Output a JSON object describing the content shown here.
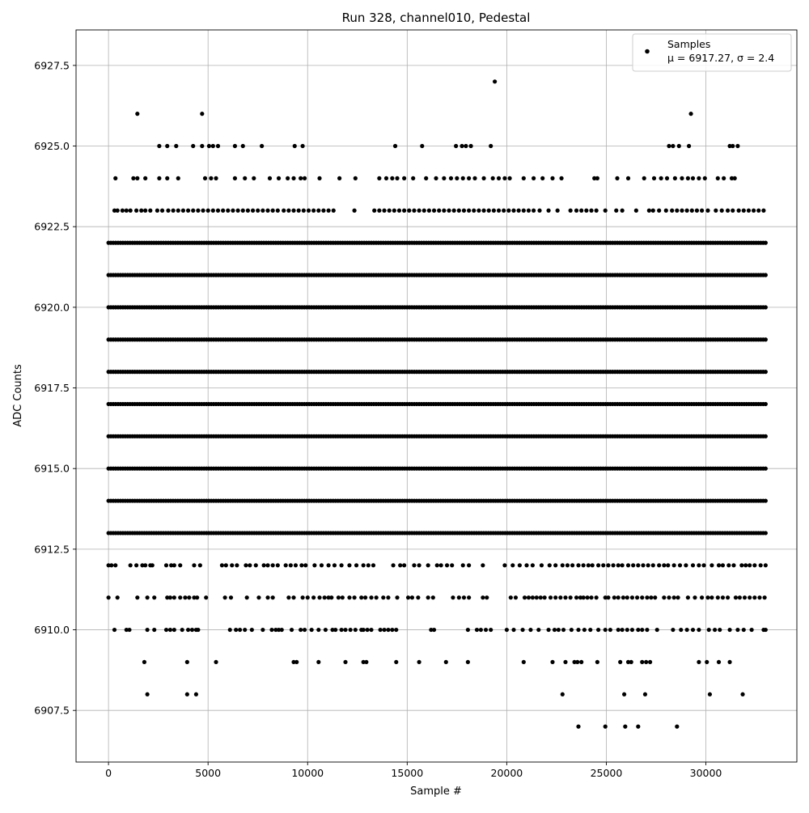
{
  "chart_data": {
    "type": "scatter",
    "title": "Run 328, channel010, Pedestal",
    "xlabel": "Sample #",
    "ylabel": "ADC Counts",
    "xlim": [
      -1630,
      34570
    ],
    "ylim": [
      6905.9,
      6928.6
    ],
    "x_ticks": [
      0,
      5000,
      10000,
      15000,
      20000,
      25000,
      30000
    ],
    "x_tick_labels": [
      "0",
      "5000",
      "10000",
      "15000",
      "20000",
      "25000",
      "30000"
    ],
    "y_ticks": [
      6907.5,
      6910.0,
      6912.5,
      6915.0,
      6917.5,
      6920.0,
      6922.5,
      6925.0,
      6927.5
    ],
    "y_tick_labels": [
      "6907.5",
      "6910.0",
      "6912.5",
      "6915.0",
      "6917.5",
      "6920.0",
      "6922.5",
      "6925.0",
      "6927.5"
    ],
    "grid": true,
    "legend_position": "top-right",
    "marker_color": "#000000",
    "series": [
      {
        "name": "Samples",
        "stats_label": "μ = 6917.27, σ = 2.4",
        "mean": 6917.27,
        "sigma": 2.4,
        "x_range": [
          0,
          33000
        ],
        "level_occupancy": [
          {
            "y": 6907,
            "x": [
              23600,
              24950,
              25950,
              26600,
              28550
            ]
          },
          {
            "y": 6908,
            "x": [
              1950,
              3950,
              4400,
              22800,
              25900,
              26950,
              30200,
              31850
            ]
          },
          {
            "y": 6909,
            "x": [
              1800,
              3950,
              5400,
              9300,
              9450,
              10550,
              11900,
              12800,
              12950,
              14450,
              15600,
              16950,
              18050,
              20850,
              22300,
              22950,
              23400,
              23550,
              23750,
              24550,
              25700,
              26100,
              26250,
              26800,
              27000,
              27200,
              29650,
              30050,
              30650,
              31200
            ]
          },
          {
            "y": 6910,
            "x": [
              300,
              900,
              1050,
              1950,
              2300,
              2900,
              3100,
              3300,
              3700,
              4000,
              4200,
              4400,
              4500,
              6100,
              6400,
              6600,
              6850,
              7200,
              7750,
              8200,
              8400,
              8550,
              8700,
              9200,
              9650,
              9850,
              10200,
              10550,
              10900,
              11250,
              11400,
              11700,
              11900,
              12150,
              12400,
              12700,
              12800,
              13000,
              13200,
              13650,
              13850,
              14050,
              14250,
              14450,
              16200,
              16350,
              18050,
              18500,
              18700,
              18950,
              19200,
              20000,
              20350,
              20800,
              21200,
              21600,
              22100,
              22400,
              22600,
              22850,
              23250,
              23600,
              23900,
              24200,
              24600,
              24950,
              25200,
              25600,
              25800,
              26050,
              26300,
              26600,
              26800,
              27050,
              27550,
              28350,
              28750,
              29050,
              29350,
              29650,
              30150,
              30450,
              30700,
              31200,
              31600,
              31900,
              32300,
              32900,
              33000
            ]
          },
          {
            "y": 6911,
            "x": [
              0,
              450,
              1450,
              1950,
              2300,
              2950,
              3100,
              3300,
              3600,
              3850,
              4050,
              4300,
              4450,
              4900,
              5850,
              6150,
              6950,
              7550,
              8000,
              8250,
              9050,
              9300,
              9750,
              10000,
              10300,
              10600,
              10850,
              11050,
              11200,
              11550,
              11750,
              12100,
              12350,
              12700,
              12900,
              13200,
              13450,
              13800,
              14050,
              14500,
              15050,
              15250,
              15550,
              16050,
              16300,
              17300,
              17600,
              17850,
              18100,
              18800,
              19000,
              20200,
              20450,
              20900,
              21100,
              21300,
              21500,
              21700,
              21900,
              22200,
              22450,
              22700,
              22950,
              23200,
              23500,
              23700,
              23850,
              24050,
              24250,
              24500,
              24950,
              25100,
              25400,
              25600,
              25850,
              26050,
              26300,
              26550,
              26800,
              27050,
              27250,
              27450,
              27900,
              28150,
              28400,
              28600,
              29100,
              29450,
              29800,
              30100,
              30300,
              30600,
              30850,
              31100,
              31500,
              31700,
              31950,
              32200,
              32450,
              32700,
              32950
            ]
          },
          {
            "y": 6912,
            "x": [
              0,
              150,
              350,
              1100,
              1400,
              1700,
              1850,
              2100,
              2200,
              2900,
              3150,
              3300,
              3600,
              4300,
              4600,
              5700,
              5900,
              6200,
              6450,
              6900,
              7100,
              7400,
              7800,
              8000,
              8250,
              8500,
              8900,
              9150,
              9400,
              9700,
              9900,
              10350,
              10700,
              11050,
              11350,
              11700,
              12100,
              12450,
              12800,
              13050,
              13300,
              14300,
              14650,
              14850,
              15350,
              15600,
              16050,
              16500,
              16700,
              17000,
              17250,
              17800,
              18100,
              18800,
              19900,
              20300,
              20650,
              21000,
              21300,
              21750,
              22150,
              22450,
              22800,
              23050,
              23300,
              23600,
              23850,
              24100,
              24300,
              24600,
              24850,
              25100,
              25350,
              25600,
              25800,
              26100,
              26350,
              26600,
              26850,
              27100,
              27350,
              27650,
              27900,
              28100,
              28400,
              28700,
              29000,
              29350,
              29650,
              29900,
              30300,
              30650,
              30850,
              31150,
              31400,
              31800,
              32000,
              32200,
              32450,
              32750,
              33000
            ]
          },
          {
            "y": 6913,
            "x": [
              0,
              33000
            ]
          },
          {
            "y": 6914,
            "x": [
              0,
              33000
            ]
          },
          {
            "y": 6915,
            "x": [
              0,
              33000
            ]
          },
          {
            "y": 6916,
            "x": [
              0,
              33000
            ]
          },
          {
            "y": 6917,
            "x": [
              0,
              33000
            ]
          },
          {
            "y": 6918,
            "x": [
              0,
              33000
            ]
          },
          {
            "y": 6919,
            "x": [
              0,
              33000
            ]
          },
          {
            "y": 6920,
            "x": [
              0,
              33000
            ]
          },
          {
            "y": 6921,
            "x": [
              0,
              33000
            ]
          },
          {
            "y": 6922,
            "x": [
              0,
              33000
            ]
          },
          {
            "y": 6923,
            "x": [
              300,
              450,
              700,
              900,
              1100,
              1400,
              1650,
              1850,
              2100,
              2450,
              2700,
              3000,
              3250,
              3500,
              3750,
              4000,
              4250,
              4500,
              4750,
              5000,
              5250,
              5500,
              5750,
              6000,
              6250,
              6500,
              6750,
              7000,
              7250,
              7500,
              7750,
              8000,
              8250,
              8500,
              8800,
              9050,
              9300,
              9550,
              9800,
              10050,
              10300,
              10550,
              10800,
              11050,
              11300,
              12350,
              13350,
              13600,
              13850,
              14100,
              14350,
              14600,
              14850,
              15100,
              15350,
              15600,
              15850,
              16100,
              16350,
              16600,
              16850,
              17100,
              17350,
              17600,
              17850,
              18100,
              18350,
              18600,
              18850,
              19100,
              19350,
              19600,
              19850,
              20100,
              20350,
              20600,
              20850,
              21100,
              21350,
              21650,
              22100,
              22550,
              23200,
              23500,
              23750,
              24000,
              24250,
              24500,
              24950,
              25500,
              25800,
              26500,
              27150,
              27350,
              27650,
              28000,
              28300,
              28550,
              28800,
              29050,
              29300,
              29550,
              29800,
              30100,
              30500,
              30800,
              31100,
              31350,
              31650,
              31900,
              32150,
              32400,
              32650,
              32900
            ]
          },
          {
            "y": 6924,
            "x": [
              350,
              1250,
              1450,
              1850,
              2550,
              2950,
              3500,
              4850,
              5150,
              5400,
              6350,
              6850,
              7300,
              8100,
              8550,
              9000,
              9300,
              9650,
              9850,
              10600,
              11600,
              12400,
              13600,
              13950,
              14250,
              14500,
              14850,
              15300,
              15950,
              16450,
              16850,
              17200,
              17500,
              17800,
              18100,
              18400,
              18850,
              19300,
              19600,
              19900,
              20150,
              20850,
              21350,
              21800,
              22300,
              22750,
              24400,
              24550,
              25550,
              26100,
              26900,
              27400,
              27750,
              28050,
              28450,
              28800,
              29100,
              29350,
              29650,
              29950,
              30600,
              30900,
              31300,
              31450
            ]
          },
          {
            "y": 6925,
            "x": [
              2550,
              2950,
              3400,
              4250,
              4700,
              5050,
              5250,
              5500,
              6350,
              6750,
              7700,
              9350,
              9750,
              14400,
              15750,
              17450,
              17750,
              17950,
              18200,
              19200,
              28150,
              28350,
              28650,
              29150,
              31200,
              31350,
              31600
            ]
          },
          {
            "y": 6926,
            "x": [
              1450,
              4700,
              29250
            ]
          },
          {
            "y": 6927,
            "x": [
              19400
            ]
          }
        ]
      }
    ]
  }
}
